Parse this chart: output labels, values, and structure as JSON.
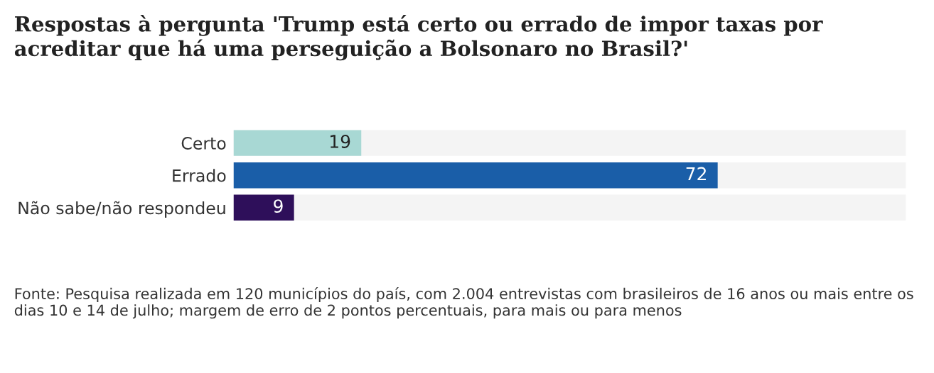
{
  "chart_data": {
    "type": "bar",
    "orientation": "horizontal",
    "title": "Respostas à pergunta 'Trump está certo ou errado de impor taxas por acreditar que há uma perseguição a Bolsonaro no Brasil?'",
    "categories": [
      "Certo",
      "Errado",
      "Não sabe/não respondeu"
    ],
    "values": [
      19,
      72,
      9
    ],
    "colors": [
      "#a8d8d4",
      "#1a5ea8",
      "#2e0f5a"
    ],
    "data_labels": true,
    "xlim": [
      0,
      100
    ],
    "bands": [
      {
        "axis": "x",
        "from": 0,
        "to": 100,
        "color": "#f4f4f4"
      }
    ],
    "annotations": [
      "Fonte: Pesquisa realizada em 120 municípios do país, com 2.004 entrevistas com brasileiros de 16 anos ou mais entre os dias 10 e 14 de julho; margem de erro de 2 pontos percentuais, para mais ou para menos"
    ]
  }
}
